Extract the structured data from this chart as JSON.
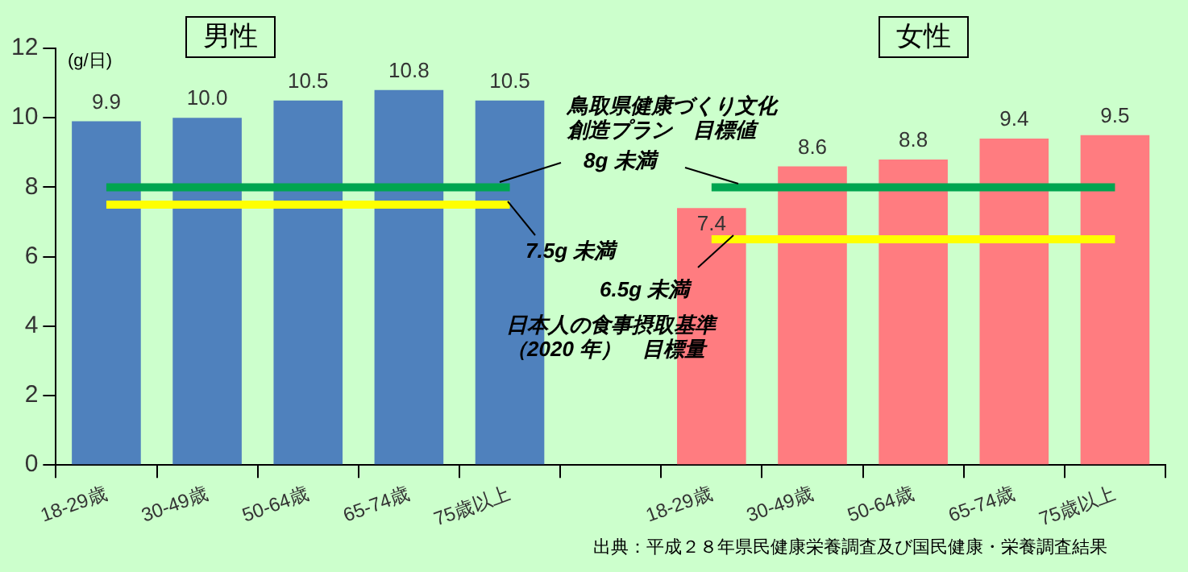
{
  "chart_data": {
    "type": "bar",
    "categories": [
      "18-29歳",
      "30-49歳",
      "50-64歳",
      "65-74歳",
      "75歳以上",
      null,
      "18-29歳",
      "30-49歳",
      "50-64歳",
      "65-74歳",
      "75歳以上"
    ],
    "series": [
      {
        "colors": [
          "#4f81bd",
          "#4f81bd",
          "#4f81bd",
          "#4f81bd",
          "#4f81bd",
          null,
          "#ff7c80",
          "#ff7c80",
          "#ff7c80",
          "#ff7c80",
          "#ff7c80"
        ],
        "values": [
          9.9,
          10.0,
          10.5,
          10.8,
          10.5,
          null,
          7.4,
          8.6,
          8.8,
          9.4,
          9.5
        ],
        "value_labels": [
          "9.9",
          "10.0",
          "10.5",
          "10.8",
          "10.5",
          null,
          "7.4",
          "8.6",
          "8.8",
          "9.4",
          "9.5"
        ]
      },
      {
        "type": "line",
        "color": "#00a550",
        "values": [
          8,
          8,
          8,
          8,
          8,
          null,
          8,
          8,
          8,
          8,
          8
        ]
      },
      {
        "type": "line",
        "color": "#ffff00",
        "values": [
          7.5,
          7.5,
          7.5,
          7.5,
          7.5,
          null,
          6.5,
          6.5,
          6.5,
          6.5,
          6.5
        ]
      }
    ],
    "ylabel": "(g/日)",
    "ylim": [
      0,
      12
    ],
    "yticks": [
      0,
      2,
      4,
      6,
      8,
      10,
      12
    ],
    "annotations": [
      "男性",
      "女性",
      "鳥取県健康づくり文化創造プラン　目標値",
      "8g 未満",
      "7.5g 未満",
      "6.5g 未満",
      "日本人の食事摂取基準（2020 年）　目標量",
      "出典：平成２８年県民健康栄養調査及び国民健康・栄養調査結果"
    ]
  }
}
